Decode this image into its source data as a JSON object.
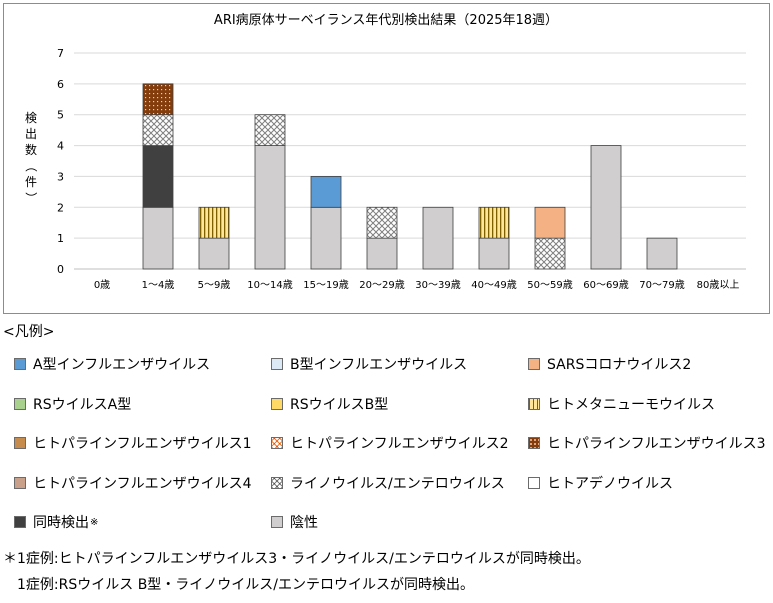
{
  "chart_data": {
    "type": "bar",
    "stacked": true,
    "title": "ARI病原体サーベイランス年代別検出結果（2025年18週）",
    "ylabel": "検出数（件）",
    "ylim": [
      0,
      7
    ],
    "yticks": [
      0,
      1,
      2,
      3,
      4,
      5,
      6,
      7
    ],
    "grid": true,
    "categories": [
      "0歳",
      "1～4歳",
      "5～9歳",
      "10～14歳",
      "15～19歳",
      "20～29歳",
      "30～39歳",
      "40～49歳",
      "50～59歳",
      "60～69歳",
      "70～79歳",
      "80歳以上"
    ],
    "series": [
      {
        "name": "陰性",
        "values": [
          0,
          2,
          1,
          4,
          2,
          1,
          2,
          1,
          0,
          4,
          1,
          0
        ]
      },
      {
        "name": "同時検出",
        "values": [
          0,
          2,
          0,
          0,
          0,
          0,
          0,
          0,
          0,
          0,
          0,
          0
        ]
      },
      {
        "name": "ライノウイルス/エンテロウイルス",
        "values": [
          0,
          1,
          0,
          1,
          0,
          1,
          0,
          0,
          1,
          0,
          0,
          0
        ]
      },
      {
        "name": "ヒトパラインフルエンザウイルス3",
        "values": [
          0,
          1,
          0,
          0,
          0,
          0,
          0,
          0,
          0,
          0,
          0,
          0
        ]
      },
      {
        "name": "ヒトメタニューモウイルス",
        "values": [
          0,
          0,
          1,
          0,
          0,
          0,
          0,
          1,
          0,
          0,
          0,
          0
        ]
      },
      {
        "name": "A型インフルエンザウイルス",
        "values": [
          0,
          0,
          0,
          0,
          1,
          0,
          0,
          0,
          0,
          0,
          0,
          0
        ]
      },
      {
        "name": "SARSコロナウイルス2",
        "values": [
          0,
          0,
          0,
          0,
          0,
          0,
          0,
          0,
          1,
          0,
          0,
          0
        ]
      }
    ]
  },
  "legend": {
    "heading": "<凡例>",
    "items": [
      {
        "label": "A型インフルエンザウイルス",
        "color": "#5b9bd5",
        "pattern": "solid"
      },
      {
        "label": "B型インフルエンザウイルス",
        "color": "#dbe8f6",
        "pattern": "solid"
      },
      {
        "label": "SARSコロナウイルス2",
        "color": "#f4b183",
        "pattern": "solid"
      },
      {
        "label": "RSウイルスA型",
        "color": "#a9d18e",
        "pattern": "solid"
      },
      {
        "label": "RSウイルスB型",
        "color": "#ffd966",
        "pattern": "solid"
      },
      {
        "label": "ヒトメタニューモウイルス",
        "color": "#ffe699",
        "pattern": "vstripes"
      },
      {
        "label": "ヒトパラインフルエンザウイルス1",
        "color": "#c58c4e",
        "pattern": "solid"
      },
      {
        "label": "ヒトパラインフルエンザウイルス2",
        "color": "#f4b183",
        "pattern": "cross"
      },
      {
        "label": "ヒトパラインフルエンザウイルス3",
        "color": "#843c0c",
        "pattern": "dots"
      },
      {
        "label": "ヒトパラインフルエンザウイルス4",
        "color": "#c9a08a",
        "pattern": "solid"
      },
      {
        "label": "ライノウイルス/エンテロウイルス",
        "color": "#9e9e9e",
        "pattern": "cross"
      },
      {
        "label": "ヒトアデノウイルス",
        "color": "#ffffff",
        "pattern": "solid"
      },
      {
        "label": "同時検出",
        "sup": "※",
        "color": "#404040",
        "pattern": "solid"
      },
      {
        "label": "陰性",
        "color": "#d0cece",
        "pattern": "solid"
      }
    ]
  },
  "notes": [
    "＊1症例:ヒトパラインフルエンザウイルス3・ライノウイルス/エンテロウイルスが同時検出。",
    "1症例:RSウイルス B型・ライノウイルス/エンテロウイルスが同時検出。"
  ]
}
